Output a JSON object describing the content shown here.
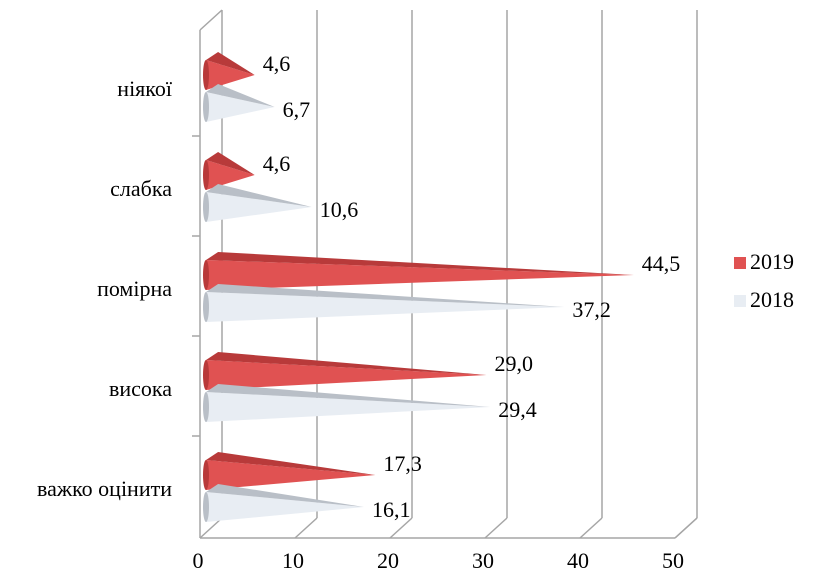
{
  "chart_data": {
    "type": "bar",
    "orientation": "horizontal",
    "style": "3d-cone",
    "categories": [
      "ніякої",
      "слабка",
      "помірна",
      "висока",
      "важко оцінити"
    ],
    "series": [
      {
        "name": "2019",
        "values": [
          4.6,
          4.6,
          44.5,
          29.0,
          17.3
        ],
        "labels": [
          "4,6",
          "4,6",
          "44,5",
          "29,0",
          "17,3"
        ],
        "color": "#e05252"
      },
      {
        "name": "2018",
        "values": [
          6.7,
          10.6,
          37.2,
          29.4,
          16.1
        ],
        "labels": [
          "6,7",
          "10,6",
          "37,2",
          "29,4",
          "16,1"
        ],
        "color": "#e8edf3"
      }
    ],
    "xlim": [
      0,
      50
    ],
    "xticks": [
      "0",
      "10",
      "20",
      "30",
      "40",
      "50"
    ],
    "grid": true,
    "legend_position": "right"
  }
}
